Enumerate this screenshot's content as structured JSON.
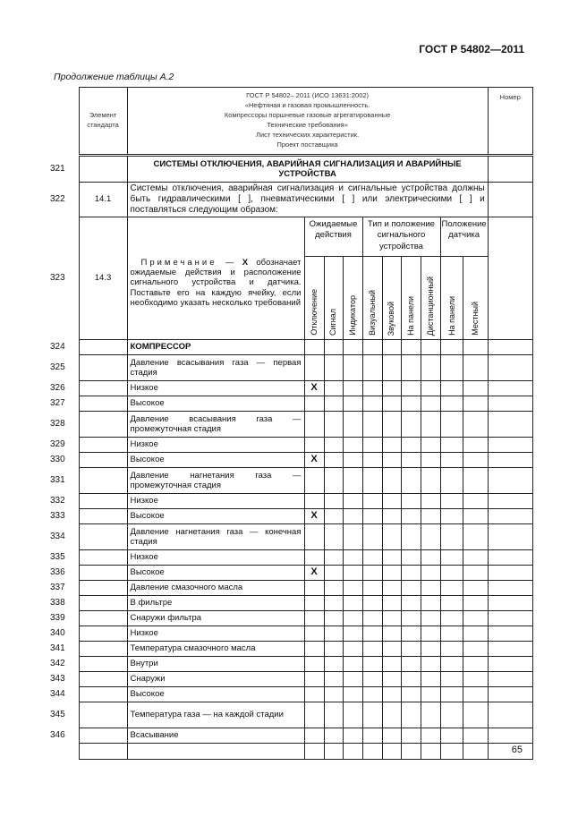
{
  "header": {
    "doc_id": "ГОСТ Р 54802—2011"
  },
  "continuation": "Продолжение таблицы А.2",
  "page_number": "65",
  "table": {
    "head": {
      "element": "Элемент стандарта",
      "title_lines": [
        "ГОСТ Р 54802– 2011 (ИСО 13631:2002)",
        "«Нефтяная и газовая промышленность.",
        "Компрессоры поршневые газовые агрегатированные",
        "Технические требования»",
        "Лист технических характеристик.",
        "Проект поставщика"
      ],
      "number": "Номер"
    },
    "r321": {
      "n": "321",
      "text": "СИСТЕМЫ ОТКЛЮЧЕНИЯ, АВАРИЙНАЯ СИГНАЛИЗАЦИЯ И АВАРИЙНЫЕ УСТРОЙСТВА"
    },
    "r322": {
      "n": "322",
      "el": "14.1",
      "text": "Системы отключения, аварийная сигнализация и сигнальные устройства должны быть гидравлическими [   ], пневматическими [   ] или электрическими [   ] и поставляться следующим образом:"
    },
    "r323": {
      "n": "323",
      "el": "14.3",
      "note_label": "Примечание",
      "note_x": "X",
      "note_text": "обозначает ожидаемые действия и расположение сигнального устройства и датчика. Поставьте его на каждую ячейку, если необходимо указать несколько требований",
      "groups": [
        "Ожидаемые действия",
        "Тип и положение сигнального устройства",
        "Положение датчика"
      ],
      "columns": [
        "Отключение",
        "Сигнал",
        "Индикатор",
        "Визуальный",
        "Звуковой",
        "На панели",
        "Дистанционный",
        "На панели",
        "Местный"
      ]
    },
    "rows": [
      {
        "n": "324",
        "text": "КОМПРЕССОР",
        "bold": true,
        "x": ""
      },
      {
        "n": "325",
        "text": "Давление всасывания газа — первая стадия",
        "x": ""
      },
      {
        "n": "326",
        "text": "Низкое",
        "x": "X"
      },
      {
        "n": "327",
        "text": "Высокое",
        "x": ""
      },
      {
        "n": "328",
        "text": "Давление всасывания газа — промежуточная стадия",
        "x": ""
      },
      {
        "n": "329",
        "text": "Низкое",
        "x": ""
      },
      {
        "n": "330",
        "text": "Высокое",
        "x": "X"
      },
      {
        "n": "331",
        "text": "Давление нагнетания газа — промежуточная стадия",
        "x": ""
      },
      {
        "n": "332",
        "text": "Низкое",
        "x": ""
      },
      {
        "n": "333",
        "text": "Высокое",
        "x": "X"
      },
      {
        "n": "334",
        "text": "Давление нагнетания газа — конечная стадия",
        "x": ""
      },
      {
        "n": "335",
        "text": "Низкое",
        "x": ""
      },
      {
        "n": "336",
        "text": "Высокое",
        "x": "X"
      },
      {
        "n": "337",
        "text": "Давление смазочного масла",
        "x": ""
      },
      {
        "n": "338",
        "text": "В фильтре",
        "x": ""
      },
      {
        "n": "339",
        "text": "Снаружи фильтра",
        "x": ""
      },
      {
        "n": "340",
        "text": "Низкое",
        "x": ""
      },
      {
        "n": "341",
        "text": "Температура смазочного масла",
        "x": ""
      },
      {
        "n": "342",
        "text": "Внутри",
        "x": ""
      },
      {
        "n": "343",
        "text": "Снаружи",
        "x": ""
      },
      {
        "n": "344",
        "text": "Высокое",
        "x": ""
      },
      {
        "n": "345",
        "text": "Температура газа — на каждой стадии",
        "x": ""
      },
      {
        "n": "346",
        "text": "Всасывание",
        "x": ""
      }
    ]
  }
}
